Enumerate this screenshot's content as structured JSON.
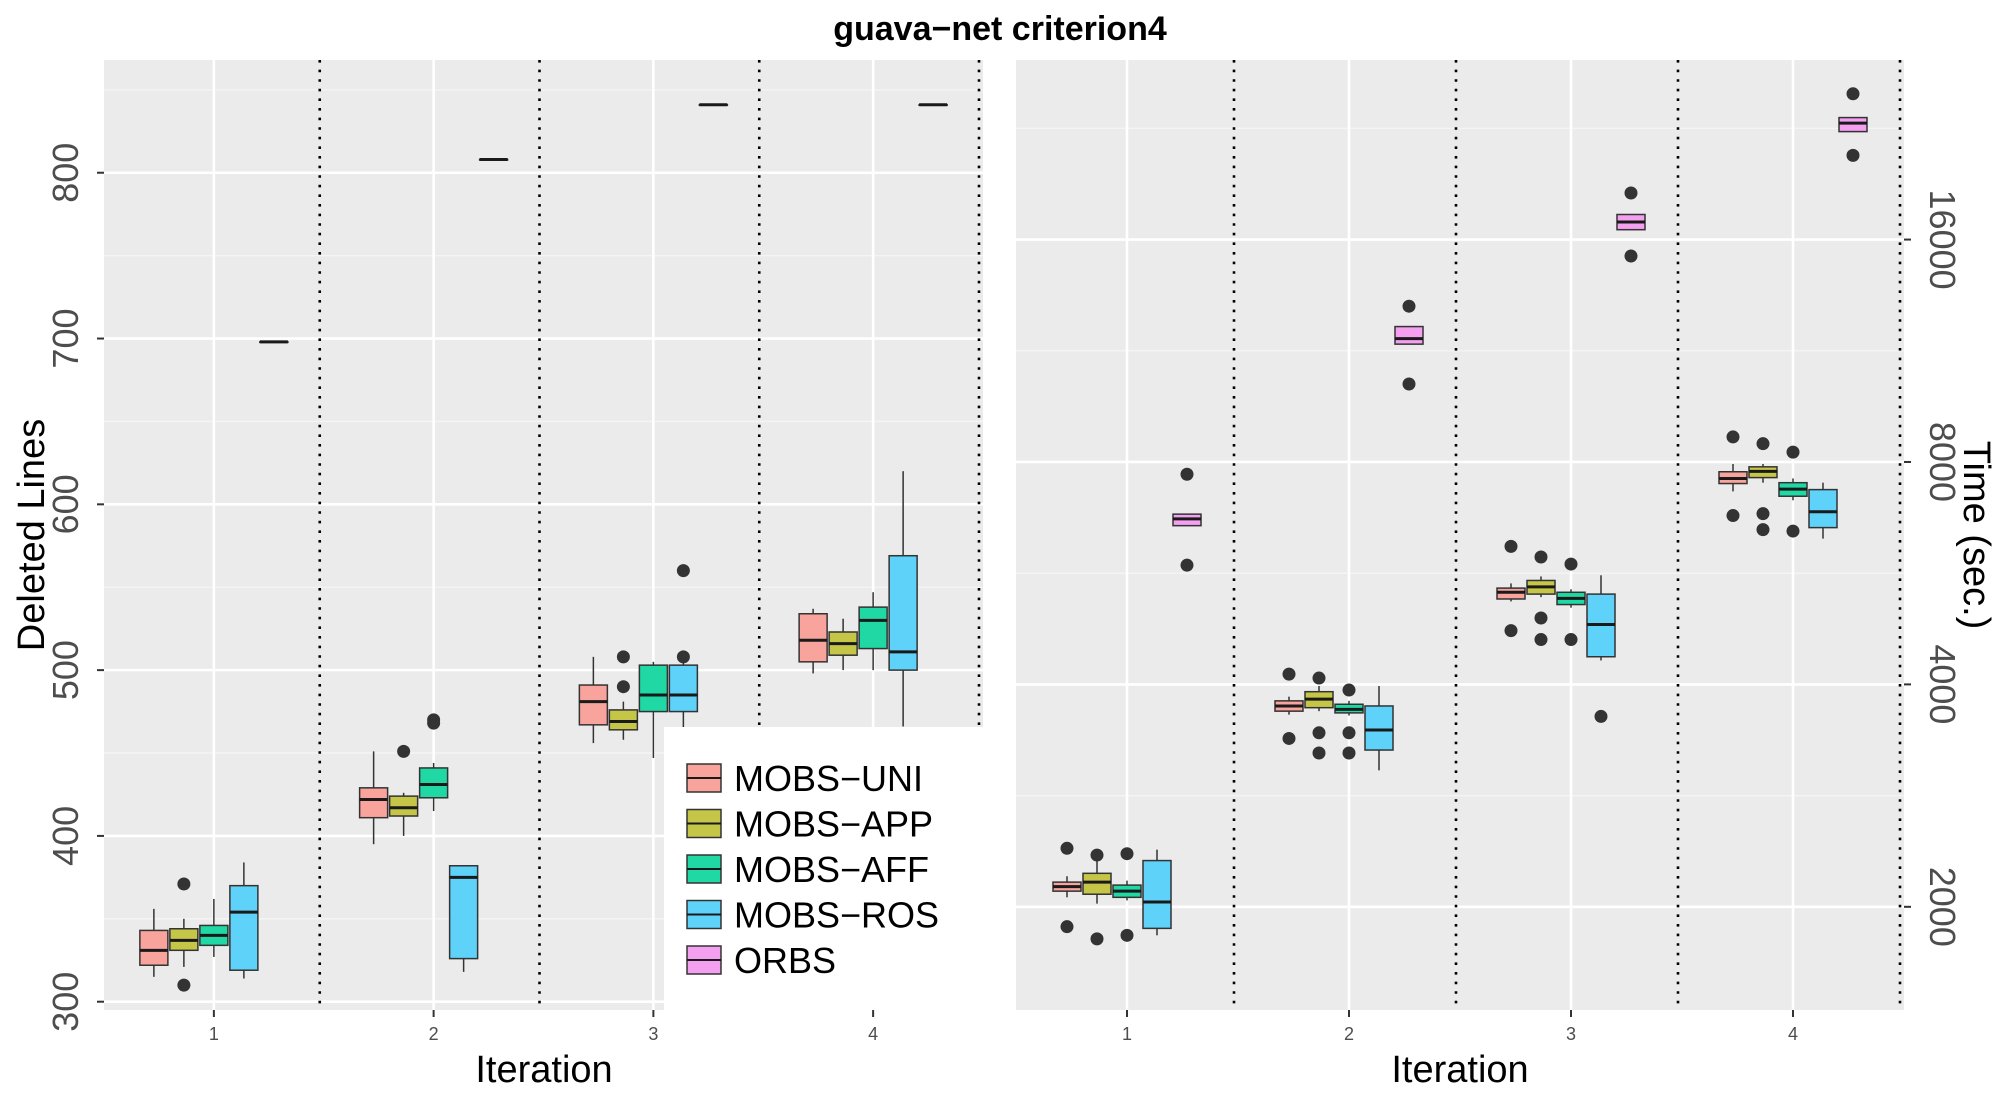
{
  "title": "guava−net criterion4",
  "chart_data": [
    {
      "type": "boxplot",
      "panel": "left",
      "xlabel": "Iteration",
      "ylabel": "Deleted Lines",
      "ylim": [
        295,
        868
      ],
      "yticks": [
        300,
        400,
        500,
        600,
        700,
        800
      ],
      "categories": [
        "1",
        "2",
        "3",
        "4"
      ],
      "series": [
        {
          "name": "MOBS-UNI",
          "color": "#F8A39C",
          "boxes": [
            {
              "q1": 322,
              "median": 331,
              "q3": 343,
              "whislo": 315,
              "whishi": 356,
              "outliers": []
            },
            {
              "q1": 411,
              "median": 422,
              "q3": 429,
              "whislo": 395,
              "whishi": 451,
              "outliers": []
            },
            {
              "q1": 467,
              "median": 481,
              "q3": 491,
              "whislo": 456,
              "whishi": 508,
              "outliers": []
            },
            {
              "q1": 505,
              "median": 518,
              "q3": 534,
              "whislo": 498,
              "whishi": 537,
              "outliers": []
            }
          ]
        },
        {
          "name": "MOBS-APP",
          "color": "#C5C648",
          "boxes": [
            {
              "q1": 331,
              "median": 337,
              "q3": 344,
              "whislo": 321,
              "whishi": 350,
              "outliers": [
                310,
                371
              ]
            },
            {
              "q1": 412,
              "median": 417,
              "q3": 424,
              "whislo": 400,
              "whishi": 426,
              "outliers": [
                451
              ]
            },
            {
              "q1": 464,
              "median": 469,
              "q3": 476,
              "whislo": 458,
              "whishi": 481,
              "outliers": [
                490,
                508
              ]
            },
            {
              "q1": 509,
              "median": 516,
              "q3": 523,
              "whislo": 500,
              "whishi": 531,
              "outliers": []
            }
          ]
        },
        {
          "name": "MOBS-AFF",
          "color": "#1FD8A4",
          "boxes": [
            {
              "q1": 334,
              "median": 340,
              "q3": 346,
              "whislo": 327,
              "whishi": 362,
              "outliers": []
            },
            {
              "q1": 423,
              "median": 431,
              "q3": 441,
              "whislo": 415,
              "whishi": 444,
              "outliers": [
                468,
                470
              ]
            },
            {
              "q1": 475,
              "median": 485,
              "q3": 503,
              "whislo": 447,
              "whishi": 505,
              "outliers": []
            },
            {
              "q1": 513,
              "median": 530,
              "q3": 538,
              "whislo": 500,
              "whishi": 547,
              "outliers": []
            }
          ]
        },
        {
          "name": "MOBS-ROS",
          "color": "#5ED2F9",
          "boxes": [
            {
              "q1": 319,
              "median": 354,
              "q3": 370,
              "whislo": 314,
              "whishi": 384,
              "outliers": []
            },
            {
              "q1": 326,
              "median": 375,
              "q3": 382,
              "whislo": 318,
              "whishi": 382,
              "outliers": []
            },
            {
              "q1": 475,
              "median": 485,
              "q3": 503,
              "whislo": 447,
              "whishi": 505,
              "outliers": [
                508,
                560
              ]
            },
            {
              "q1": 500,
              "median": 511,
              "q3": 569,
              "whislo": 466,
              "whishi": 620,
              "outliers": []
            }
          ]
        },
        {
          "name": "ORBS",
          "color": "#F49FF0",
          "boxes": [
            {
              "q1": 698,
              "median": 698,
              "q3": 698,
              "whislo": 698,
              "whishi": 698,
              "outliers": []
            },
            {
              "q1": 808,
              "median": 808,
              "q3": 808,
              "whislo": 808,
              "whishi": 808,
              "outliers": []
            },
            {
              "q1": 841,
              "median": 841,
              "q3": 841,
              "whislo": 841,
              "whishi": 841,
              "outliers": []
            },
            {
              "q1": 841,
              "median": 841,
              "q3": 841,
              "whislo": 841,
              "whishi": 841,
              "outliers": []
            }
          ]
        }
      ]
    },
    {
      "type": "boxplot",
      "panel": "right",
      "xlabel": "Iteration",
      "ylabel": "Time (sec.)",
      "yscale": "log2",
      "ylim": [
        1450,
        28000
      ],
      "yticks": [
        2000,
        4000,
        8000,
        16000
      ],
      "categories": [
        "1",
        "2",
        "3",
        "4"
      ],
      "series": [
        {
          "name": "MOBS-UNI",
          "color": "#F8A39C",
          "boxes": [
            {
              "q1": 2100,
              "median": 2130,
              "q3": 2160,
              "whislo": 2060,
              "whishi": 2200,
              "outliers": [
                1880,
                2400
              ]
            },
            {
              "q1": 3680,
              "median": 3740,
              "q3": 3800,
              "whislo": 3640,
              "whishi": 3850,
              "outliers": [
                3380,
                4130
              ]
            },
            {
              "q1": 5220,
              "median": 5330,
              "q3": 5400,
              "whislo": 5180,
              "whishi": 5480,
              "outliers": [
                4730,
                6150
              ]
            },
            {
              "q1": 7480,
              "median": 7600,
              "q3": 7760,
              "whislo": 7300,
              "whishi": 7950,
              "outliers": [
                6770,
                8650
              ]
            }
          ]
        },
        {
          "name": "MOBS-APP",
          "color": "#C5C648",
          "boxes": [
            {
              "q1": 2080,
              "median": 2160,
              "q3": 2220,
              "whislo": 2020,
              "whishi": 2380,
              "outliers": [
                1810,
                2350
              ]
            },
            {
              "q1": 3720,
              "median": 3820,
              "q3": 3910,
              "whislo": 3680,
              "whishi": 3980,
              "outliers": [
                3230,
                3440,
                4080
              ]
            },
            {
              "q1": 5300,
              "median": 5420,
              "q3": 5530,
              "whislo": 5250,
              "whishi": 5600,
              "outliers": [
                4600,
                4920,
                5950
              ]
            },
            {
              "q1": 7620,
              "median": 7770,
              "q3": 7880,
              "whislo": 7500,
              "whishi": 7950,
              "outliers": [
                6480,
                6810,
                8470
              ]
            }
          ]
        },
        {
          "name": "MOBS-AFF",
          "color": "#1FD8A4",
          "boxes": [
            {
              "q1": 2060,
              "median": 2100,
              "q3": 2140,
              "whislo": 2040,
              "whishi": 2170,
              "outliers": [
                1830,
                2360
              ]
            },
            {
              "q1": 3660,
              "median": 3700,
              "q3": 3760,
              "whislo": 3630,
              "whishi": 3800,
              "outliers": [
                3230,
                3440,
                3930
              ]
            },
            {
              "q1": 5130,
              "median": 5230,
              "q3": 5330,
              "whislo": 5080,
              "whishi": 5380,
              "outliers": [
                4600,
                5820
              ]
            },
            {
              "q1": 7190,
              "median": 7350,
              "q3": 7500,
              "whislo": 7100,
              "whishi": 7600,
              "outliers": [
                6450,
                8250
              ]
            }
          ]
        },
        {
          "name": "MOBS-ROS",
          "color": "#5ED2F9",
          "boxes": [
            {
              "q1": 1870,
              "median": 2030,
              "q3": 2310,
              "whislo": 1830,
              "whishi": 2390,
              "outliers": []
            },
            {
              "q1": 3260,
              "median": 3470,
              "q3": 3740,
              "whislo": 3060,
              "whishi": 3980,
              "outliers": []
            },
            {
              "q1": 4360,
              "median": 4820,
              "q3": 5300,
              "whislo": 4310,
              "whishi": 5620,
              "outliers": [
                3620
              ]
            },
            {
              "q1": 6520,
              "median": 6850,
              "q3": 7340,
              "whislo": 6300,
              "whishi": 7500,
              "outliers": []
            }
          ]
        },
        {
          "name": "ORBS",
          "color": "#F49FF0",
          "boxes": [
            {
              "q1": 6560,
              "median": 6700,
              "q3": 6800,
              "whislo": 6560,
              "whishi": 6800,
              "outliers": [
                5800,
                7700
              ]
            },
            {
              "q1": 11550,
              "median": 11750,
              "q3": 12200,
              "whislo": 11550,
              "whishi": 12200,
              "outliers": [
                10200,
                13000
              ]
            },
            {
              "q1": 16500,
              "median": 16900,
              "q3": 17300,
              "whislo": 16500,
              "whishi": 17300,
              "outliers": [
                15200,
                18500
              ]
            },
            {
              "q1": 22400,
              "median": 23000,
              "q3": 23400,
              "whislo": 22400,
              "whishi": 23400,
              "outliers": [
                20800,
                25200
              ]
            }
          ]
        }
      ]
    }
  ],
  "legend": {
    "placement": "inside-bottom-right-of-left-panel",
    "entries": [
      {
        "label": "MOBS−UNI",
        "color": "#F8A39C"
      },
      {
        "label": "MOBS−APP",
        "color": "#C5C648"
      },
      {
        "label": "MOBS−AFF",
        "color": "#1FD8A4"
      },
      {
        "label": "MOBS−ROS",
        "color": "#5ED2F9"
      },
      {
        "label": "ORBS",
        "color": "#F49FF0"
      }
    ]
  }
}
